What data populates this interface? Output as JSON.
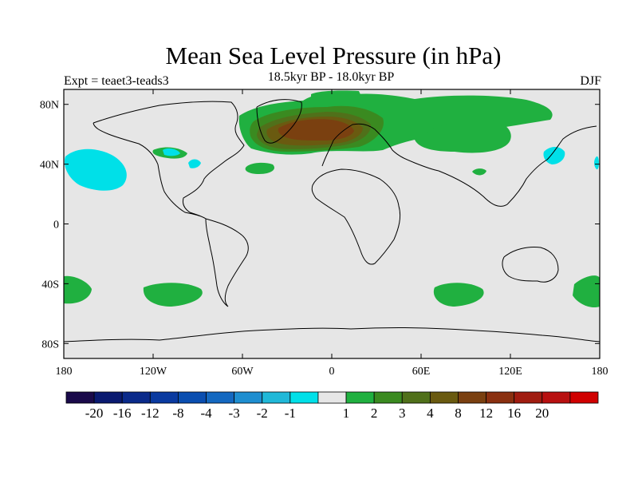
{
  "title": "Mean Sea Level Pressure (in hPa)",
  "left_label": "Expt = teaet3-teads3",
  "center_label": "18.5kyr BP - 18.0kyr BP",
  "right_label": "DJF",
  "map": {
    "projection": "cylindrical equidistant",
    "lon_range": [
      -180,
      180
    ],
    "lat_range": [
      -90,
      90
    ],
    "background_color": "#e6e6e6",
    "coastline_color": "#000000",
    "lon_ticks": [
      {
        "lon": -180,
        "label": "180"
      },
      {
        "lon": -120,
        "label": "120W"
      },
      {
        "lon": -60,
        "label": "60W"
      },
      {
        "lon": 0,
        "label": "0"
      },
      {
        "lon": 60,
        "label": "60E"
      },
      {
        "lon": 120,
        "label": "120E"
      },
      {
        "lon": 180,
        "label": "180"
      }
    ],
    "lat_ticks": [
      {
        "lat": 80,
        "label": "80N"
      },
      {
        "lat": 40,
        "label": "40N"
      },
      {
        "lat": 0,
        "label": "0"
      },
      {
        "lat": -40,
        "label": "40S"
      },
      {
        "lat": -80,
        "label": "80S"
      }
    ]
  },
  "colorbar": {
    "colors": [
      "#1a0a4a",
      "#0a1a70",
      "#0a2a8a",
      "#0a3aa0",
      "#0a4eb0",
      "#1468c0",
      "#1e8ed0",
      "#20b8d8",
      "#00e0e8",
      "#e6e6e6",
      "#20b040",
      "#3a8a20",
      "#50701a",
      "#6a5a10",
      "#7a4010",
      "#8a3010",
      "#a01c10",
      "#b81010",
      "#d00000"
    ],
    "labels": [
      "-20",
      "-16",
      "-12",
      "-8",
      "-4",
      "-3",
      "-2",
      "-1",
      "1",
      "2",
      "3",
      "4",
      "8",
      "12",
      "16",
      "20"
    ]
  }
}
